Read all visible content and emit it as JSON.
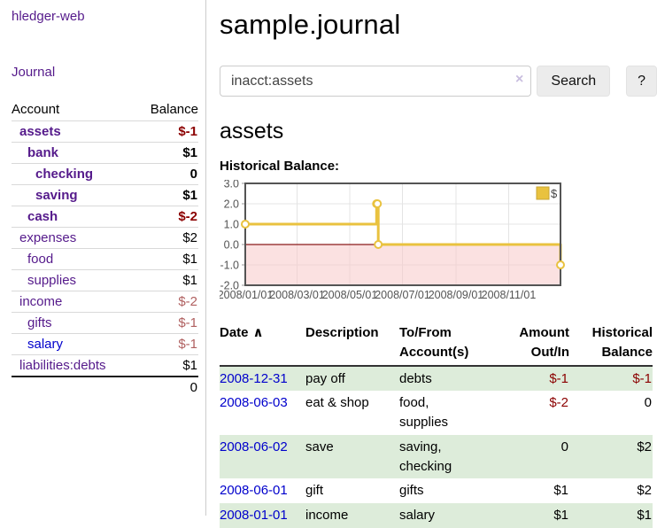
{
  "sidebar": {
    "brand": "hledger-web",
    "journal_link": "Journal",
    "accounts": {
      "header_account": "Account",
      "header_balance": "Balance",
      "rows": [
        {
          "name": "assets",
          "depth": 0,
          "bold": true,
          "link_tone": "purple",
          "balance": "$-1",
          "balance_tone": "negative"
        },
        {
          "name": "bank",
          "depth": 1,
          "bold": true,
          "link_tone": "purple",
          "balance": "$1",
          "balance_tone": "normal"
        },
        {
          "name": "checking",
          "depth": 2,
          "bold": true,
          "link_tone": "purple",
          "balance": "0",
          "balance_tone": "normal"
        },
        {
          "name": "saving",
          "depth": 2,
          "bold": true,
          "link_tone": "purple",
          "balance": "$1",
          "balance_tone": "normal"
        },
        {
          "name": "cash",
          "depth": 1,
          "bold": true,
          "link_tone": "purple",
          "balance": "$-2",
          "balance_tone": "negative"
        },
        {
          "name": "expenses",
          "depth": 0,
          "bold": false,
          "link_tone": "purple",
          "balance": "$2",
          "balance_tone": "normal"
        },
        {
          "name": "food",
          "depth": 1,
          "bold": false,
          "link_tone": "purple",
          "balance": "$1",
          "balance_tone": "normal"
        },
        {
          "name": "supplies",
          "depth": 1,
          "bold": false,
          "link_tone": "purple",
          "balance": "$1",
          "balance_tone": "normal"
        },
        {
          "name": "income",
          "depth": 0,
          "bold": false,
          "link_tone": "purple",
          "balance": "$-2",
          "balance_tone": "negative_muted"
        },
        {
          "name": "gifts",
          "depth": 1,
          "bold": false,
          "link_tone": "purple",
          "balance": "$-1",
          "balance_tone": "negative_muted"
        },
        {
          "name": "salary",
          "depth": 1,
          "bold": false,
          "link_tone": "blue",
          "balance": "$-1",
          "balance_tone": "negative_muted"
        },
        {
          "name": "liabilities:debts",
          "depth": 0,
          "bold": false,
          "link_tone": "purple",
          "balance": "$1",
          "balance_tone": "normal"
        }
      ],
      "total": "0"
    }
  },
  "header": {
    "title": "sample.journal"
  },
  "search": {
    "value": "inacct:assets",
    "clear_label": "×",
    "search_button": "Search",
    "help_button": "?"
  },
  "account_page": {
    "heading": "assets",
    "chart_title": "Historical Balance:"
  },
  "chart_data": {
    "type": "line",
    "title": "Historical Balance",
    "step": true,
    "x_domain": [
      "2008-01-01",
      "2008-12-31"
    ],
    "ylim": [
      -2.0,
      3.0
    ],
    "grid": true,
    "legend_position": "top-right",
    "series": [
      {
        "name": "$",
        "color": "#e9c23f",
        "points": [
          {
            "date": "2008-01-01",
            "value": 1
          },
          {
            "date": "2008-06-01",
            "value": 2
          },
          {
            "date": "2008-06-02",
            "value": 2
          },
          {
            "date": "2008-06-03",
            "value": 0
          },
          {
            "date": "2008-12-31",
            "value": -1
          }
        ]
      }
    ],
    "y_ticks": [
      {
        "value": 3,
        "label": "3.0"
      },
      {
        "value": 2,
        "label": "2.0"
      },
      {
        "value": 1,
        "label": "1.0"
      },
      {
        "value": 0,
        "label": "0.0"
      },
      {
        "value": -1,
        "label": "-1.0"
      },
      {
        "value": -2,
        "label": "-2.0"
      }
    ],
    "x_ticks": [
      {
        "date": "2008-01-01",
        "label": "2008/01/01"
      },
      {
        "date": "2008-03-01",
        "label": "2008/03/01"
      },
      {
        "date": "2008-05-01",
        "label": "2008/05/01"
      },
      {
        "date": "2008-07-01",
        "label": "2008/07/01"
      },
      {
        "date": "2008-09-01",
        "label": "2008/09/01"
      },
      {
        "date": "2008-11-01",
        "label": "2008/11/01"
      }
    ],
    "negative_region_color": "#f8c8c8",
    "zero_line_color": "#8b1a1a",
    "grid_color": "#e4e4e4",
    "border_color": "#545454",
    "tick_label_color": "#545454"
  },
  "register": {
    "headers": {
      "date": "Date",
      "sort_icon": "∧",
      "description": "Description",
      "accounts": "To/From Account(s)",
      "amount": "Amount Out/In",
      "balance": "Historical Balance"
    },
    "rows": [
      {
        "date": "2008-12-31",
        "description": "pay off",
        "accounts": [
          "debts"
        ],
        "amount": "$-1",
        "amount_negative": true,
        "balance": "$-1",
        "balance_negative": true,
        "shaded": true
      },
      {
        "date": "2008-06-03",
        "description": "eat & shop",
        "accounts": [
          "food",
          "supplies"
        ],
        "amount": "$-2",
        "amount_negative": true,
        "balance": "0",
        "balance_negative": false,
        "shaded": false
      },
      {
        "date": "2008-06-02",
        "description": "save",
        "accounts": [
          "saving",
          "checking"
        ],
        "amount": "0",
        "amount_negative": false,
        "balance": "$2",
        "balance_negative": false,
        "shaded": true
      },
      {
        "date": "2008-06-01",
        "description": "gift",
        "accounts": [
          "gifts"
        ],
        "amount": "$1",
        "amount_negative": false,
        "balance": "$2",
        "balance_negative": false,
        "shaded": false
      },
      {
        "date": "2008-01-01",
        "description": "income",
        "accounts": [
          "salary"
        ],
        "amount": "$1",
        "amount_negative": false,
        "balance": "$1",
        "balance_negative": false,
        "shaded": true
      }
    ]
  },
  "colors": {
    "link_purple": "#551a8b",
    "link_blue": "#0000cc",
    "negative_strong": "#8b0000",
    "negative_muted": "#b06060",
    "row_highlight_green": "#ddecda",
    "series_yellow": "#e9c23f"
  }
}
